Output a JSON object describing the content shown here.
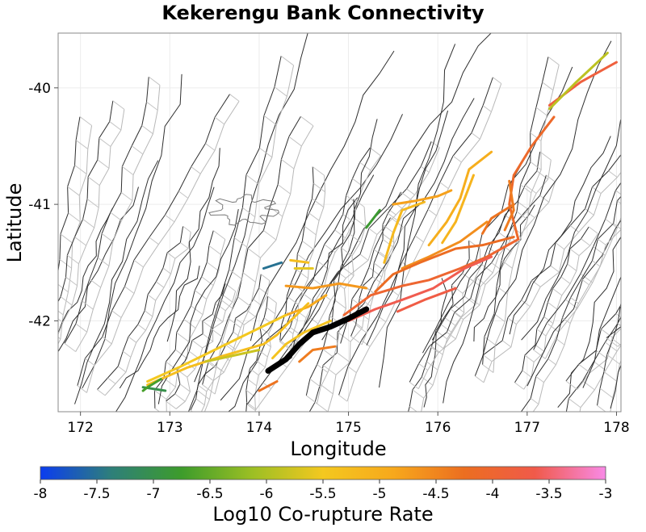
{
  "chart_data": {
    "type": "map",
    "title": "Kekerengu Bank Connectivity",
    "xlabel": "Longitude",
    "ylabel": "Latitude",
    "xlim": [
      171.75,
      178.05
    ],
    "ylim": [
      -42.78,
      -39.53
    ],
    "xticks": [
      172,
      173,
      174,
      175,
      176,
      177,
      178
    ],
    "yticks": [
      -40,
      -41,
      -42
    ],
    "xtick_labels": [
      "172",
      "173",
      "174",
      "175",
      "176",
      "177",
      "178"
    ],
    "ytick_labels": [
      "-40",
      "-41",
      "-42"
    ],
    "colorbar": {
      "label": "Log10 Co-rupture Rate",
      "range": [
        -8,
        -3
      ],
      "ticks": [
        -8,
        -7.5,
        -7,
        -6.5,
        -6,
        -5.5,
        -5,
        -4.5,
        -4,
        -3.5,
        -3
      ],
      "tick_labels": [
        "-8",
        "-7.5",
        "-7",
        "-6.5",
        "-6",
        "-5.5",
        "-5",
        "-4.5",
        "-4",
        "-3.5",
        "-3"
      ],
      "colors": [
        "#0b3cf0",
        "#2e7f7a",
        "#3d9c2b",
        "#9cbf24",
        "#f4c81f",
        "#f7a81c",
        "#ec6e20",
        "#f05a4a",
        "#f88ae6"
      ]
    },
    "source_fault": {
      "name": "Kekerengu Bank",
      "points": [
        [
          174.1,
          -42.43
        ],
        [
          174.3,
          -42.33
        ],
        [
          174.45,
          -42.2
        ],
        [
          174.6,
          -42.1
        ],
        [
          174.8,
          -42.05
        ],
        [
          175.0,
          -41.98
        ],
        [
          175.2,
          -41.9
        ]
      ]
    },
    "segments": [
      {
        "v": -3.8,
        "points": [
          [
            177.25,
            -40.15
          ],
          [
            177.6,
            -39.95
          ],
          [
            178.0,
            -39.78
          ]
        ]
      },
      {
        "v": -5.9,
        "points": [
          [
            177.25,
            -40.18
          ],
          [
            177.55,
            -39.95
          ],
          [
            177.9,
            -39.7
          ]
        ]
      },
      {
        "v": -4.1,
        "points": [
          [
            177.3,
            -40.25
          ],
          [
            177.05,
            -40.5
          ],
          [
            176.85,
            -40.75
          ],
          [
            176.8,
            -41.0
          ],
          [
            176.9,
            -41.3
          ]
        ]
      },
      {
        "v": -4.3,
        "points": [
          [
            176.85,
            -41.0
          ],
          [
            176.6,
            -41.12
          ],
          [
            176.5,
            -41.25
          ]
        ]
      },
      {
        "v": -4.4,
        "points": [
          [
            176.8,
            -40.8
          ],
          [
            176.85,
            -41.05
          ],
          [
            176.75,
            -41.22
          ]
        ]
      },
      {
        "v": -5.0,
        "points": [
          [
            176.6,
            -40.55
          ],
          [
            176.35,
            -40.7
          ],
          [
            176.25,
            -40.95
          ],
          [
            176.1,
            -41.15
          ],
          [
            175.9,
            -41.35
          ]
        ]
      },
      {
        "v": -5.1,
        "points": [
          [
            176.4,
            -40.75
          ],
          [
            176.3,
            -40.95
          ],
          [
            176.2,
            -41.15
          ],
          [
            176.05,
            -41.33
          ]
        ]
      },
      {
        "v": -4.6,
        "points": [
          [
            176.55,
            -41.15
          ],
          [
            176.25,
            -41.32
          ],
          [
            175.9,
            -41.45
          ],
          [
            175.6,
            -41.55
          ]
        ]
      },
      {
        "v": -4.2,
        "points": [
          [
            176.85,
            -41.28
          ],
          [
            176.5,
            -41.35
          ],
          [
            176.2,
            -41.38
          ],
          [
            175.8,
            -41.5
          ],
          [
            175.5,
            -41.6
          ],
          [
            175.3,
            -41.75
          ]
        ]
      },
      {
        "v": -4.0,
        "points": [
          [
            176.9,
            -41.3
          ],
          [
            176.55,
            -41.45
          ],
          [
            176.25,
            -41.55
          ],
          [
            175.9,
            -41.65
          ],
          [
            175.6,
            -41.7
          ],
          [
            175.25,
            -41.78
          ],
          [
            174.95,
            -41.95
          ]
        ]
      },
      {
        "v": -3.6,
        "points": [
          [
            176.6,
            -41.45
          ],
          [
            176.3,
            -41.55
          ],
          [
            175.95,
            -41.72
          ],
          [
            175.6,
            -41.82
          ],
          [
            175.3,
            -41.9
          ],
          [
            175.0,
            -42.0
          ]
        ]
      },
      {
        "v": -3.7,
        "points": [
          [
            176.2,
            -41.72
          ],
          [
            175.85,
            -41.82
          ],
          [
            175.55,
            -41.92
          ]
        ]
      },
      {
        "v": -4.7,
        "points": [
          [
            175.2,
            -41.72
          ],
          [
            174.9,
            -41.68
          ],
          [
            174.6,
            -41.72
          ],
          [
            174.3,
            -41.7
          ]
        ]
      },
      {
        "v": -4.9,
        "points": [
          [
            174.75,
            -41.78
          ],
          [
            174.55,
            -41.88
          ],
          [
            174.3,
            -41.95
          ]
        ]
      },
      {
        "v": -5.4,
        "points": [
          [
            174.8,
            -42.0
          ],
          [
            174.5,
            -42.1
          ],
          [
            174.3,
            -42.2
          ],
          [
            174.15,
            -42.32
          ]
        ]
      },
      {
        "v": -5.3,
        "points": [
          [
            174.55,
            -41.85
          ],
          [
            174.35,
            -42.0
          ],
          [
            174.2,
            -42.12
          ],
          [
            174.05,
            -42.2
          ],
          [
            173.6,
            -42.3
          ],
          [
            173.2,
            -42.4
          ],
          [
            172.75,
            -42.55
          ]
        ]
      },
      {
        "v": -5.5,
        "points": [
          [
            174.3,
            -41.95
          ],
          [
            173.9,
            -42.1
          ],
          [
            173.5,
            -42.25
          ],
          [
            173.1,
            -42.4
          ],
          [
            172.75,
            -42.52
          ]
        ]
      },
      {
        "v": -5.8,
        "points": [
          [
            174.0,
            -42.25
          ],
          [
            173.7,
            -42.3
          ],
          [
            173.4,
            -42.35
          ]
        ]
      },
      {
        "v": -4.3,
        "points": [
          [
            174.2,
            -42.52
          ],
          [
            174.0,
            -42.6
          ]
        ]
      },
      {
        "v": -4.4,
        "points": [
          [
            174.85,
            -42.22
          ],
          [
            174.6,
            -42.25
          ],
          [
            174.45,
            -42.35
          ]
        ]
      },
      {
        "v": -7.0,
        "points": [
          [
            172.7,
            -42.57
          ],
          [
            172.95,
            -42.6
          ]
        ]
      },
      {
        "v": -6.7,
        "points": [
          [
            172.9,
            -42.5
          ],
          [
            172.75,
            -42.57
          ],
          [
            172.7,
            -42.6
          ]
        ]
      },
      {
        "v": -5.2,
        "points": [
          [
            175.4,
            -41.5
          ],
          [
            175.5,
            -41.25
          ],
          [
            175.6,
            -41.05
          ],
          [
            175.85,
            -40.98
          ]
        ]
      },
      {
        "v": -4.8,
        "points": [
          [
            175.5,
            -41.0
          ],
          [
            175.75,
            -40.97
          ],
          [
            176.0,
            -40.93
          ],
          [
            176.15,
            -40.88
          ]
        ]
      },
      {
        "v": -6.8,
        "points": [
          [
            175.2,
            -41.2
          ],
          [
            175.35,
            -41.05
          ]
        ]
      },
      {
        "v": -5.6,
        "points": [
          [
            174.4,
            -41.55
          ],
          [
            174.6,
            -41.55
          ]
        ]
      },
      {
        "v": -5.3,
        "points": [
          [
            174.35,
            -41.48
          ],
          [
            174.55,
            -41.5
          ]
        ]
      },
      {
        "v": -7.5,
        "points": [
          [
            174.05,
            -41.55
          ],
          [
            174.25,
            -41.5
          ]
        ]
      }
    ]
  }
}
